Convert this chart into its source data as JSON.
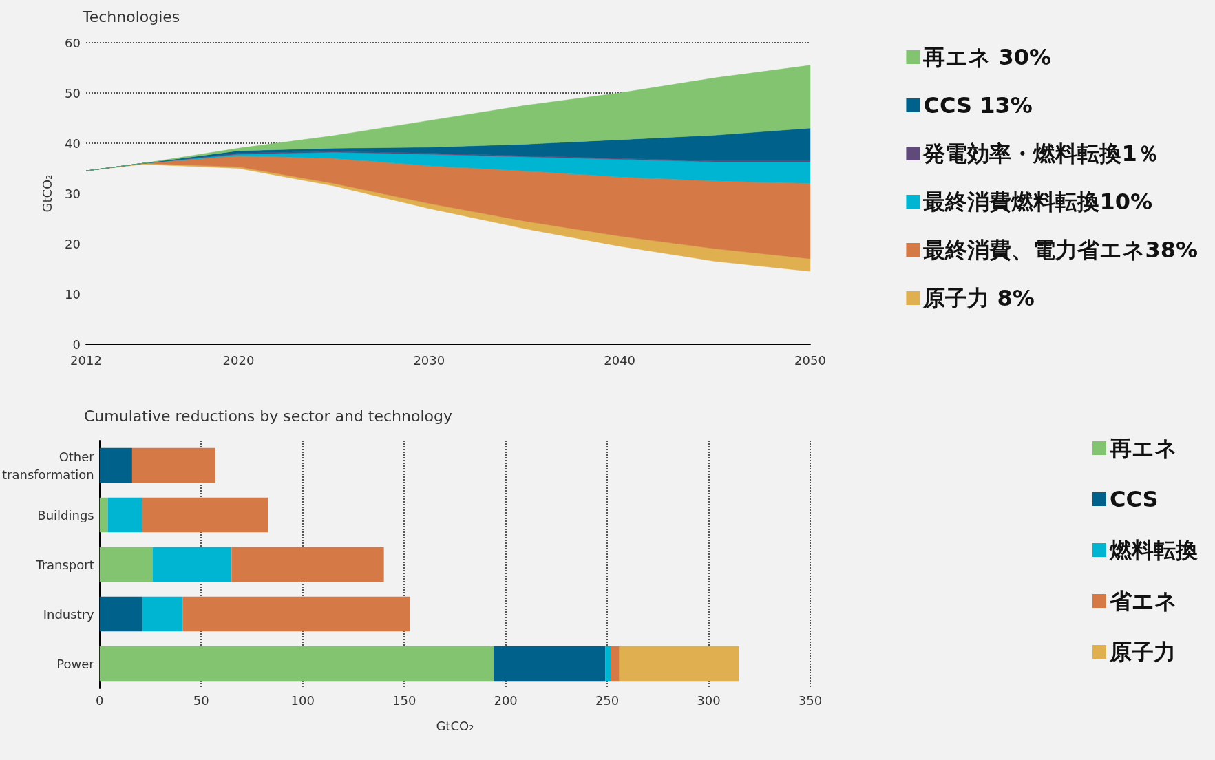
{
  "chart_data": [
    {
      "type": "area",
      "title": "Technologies",
      "ylabel": "GtCO₂",
      "stacked": true,
      "x": [
        2012,
        2015,
        2020,
        2025,
        2030,
        2035,
        2040,
        2045,
        2050
      ],
      "xlim": [
        2012,
        2050
      ],
      "xticks": [
        2012,
        2020,
        2030,
        2040,
        2050
      ],
      "ylim": [
        0,
        60
      ],
      "yticks": [
        0,
        10,
        20,
        30,
        40,
        50,
        60
      ],
      "grid": "y",
      "legend": "right",
      "series": [
        {
          "color": "#f2f2f2",
          "values": [
            34.5,
            35.8,
            35,
            31.5,
            27,
            23,
            19.5,
            16.5,
            14.5
          ]
        },
        {
          "name": "原子力 8%",
          "color": "#e0b050",
          "values": [
            0,
            0.2,
            0.3,
            0.5,
            1,
            1.5,
            2,
            2.5,
            2.5
          ]
        },
        {
          "name": "最終消費、電力省エネ38%",
          "color": "#d57946",
          "values": [
            0,
            0,
            2.2,
            5,
            7.5,
            10,
            11.8,
            13.5,
            15
          ]
        },
        {
          "name": "最終消費燃料転換10%",
          "color": "#00b5d1",
          "values": [
            0,
            0,
            0.3,
            1.2,
            2.3,
            2.8,
            3.5,
            3.8,
            4.3
          ]
        },
        {
          "name": "発電効率・燃料転換1％",
          "color": "#604a7b",
          "values": [
            0,
            0,
            0.2,
            0.2,
            0.2,
            0.2,
            0.2,
            0.2,
            0.2
          ]
        },
        {
          "name": "CCS 13%",
          "color": "#00618a",
          "values": [
            0,
            0,
            0.5,
            0.6,
            1.2,
            2.3,
            3.7,
            5.1,
            6.5
          ]
        },
        {
          "name": "再エネ 30%",
          "color": "#82c46f",
          "values": [
            0,
            0,
            0.5,
            2.5,
            5.3,
            7.7,
            9.3,
            11.4,
            12.5
          ]
        }
      ]
    },
    {
      "type": "bar",
      "title": "Cumulative reductions by sector and technology",
      "xlabel": "GtCO₂",
      "orientation": "horizontal",
      "stacked": true,
      "categories": [
        "Other transformation",
        "Buildings",
        "Transport",
        "Industry",
        "Power"
      ],
      "xlim": [
        0,
        350
      ],
      "xticks": [
        0,
        50,
        100,
        150,
        200,
        250,
        300,
        350
      ],
      "grid": "x",
      "legend": "right",
      "series": [
        {
          "name": "再エネ",
          "color": "#82c46f",
          "values": [
            null,
            4,
            26,
            null,
            194
          ]
        },
        {
          "name": "CCS",
          "color": "#00618a",
          "values": [
            16,
            null,
            null,
            21,
            55
          ]
        },
        {
          "name": "燃料転換",
          "color": "#00b5d1",
          "values": [
            null,
            17,
            39,
            20,
            3
          ]
        },
        {
          "name": "省エネ",
          "color": "#d57946",
          "values": [
            41,
            62,
            75,
            112,
            4
          ]
        },
        {
          "name": "原子力",
          "color": "#e0b050",
          "values": [
            null,
            null,
            null,
            null,
            59
          ]
        }
      ]
    }
  ]
}
